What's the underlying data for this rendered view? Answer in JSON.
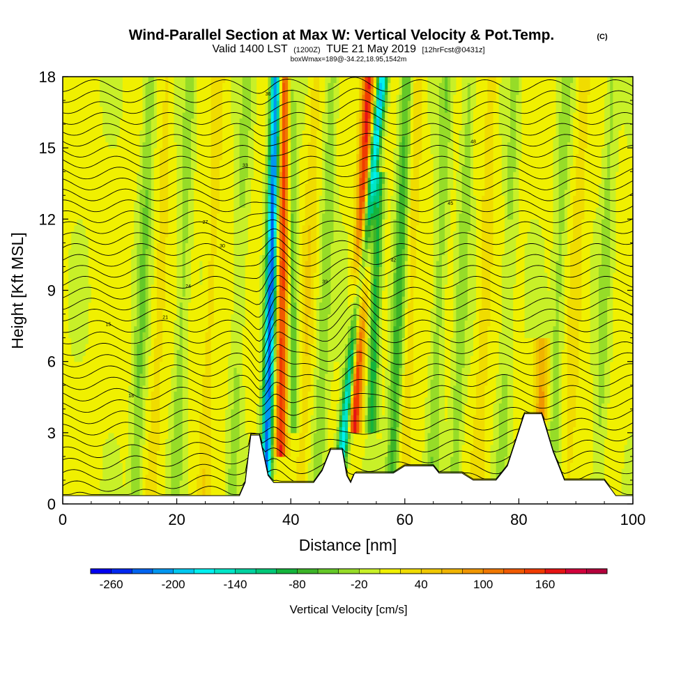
{
  "chart_data": {
    "type": "heatmap",
    "title": "Wind-Parallel Section at Max W: Vertical Velocity & Pot.Temp.",
    "title_mark": "(C)",
    "subtitle_valid": "Valid 1400 LST",
    "subtitle_z": "(1200Z)",
    "subtitle_date": "TUE 21 May 2019",
    "subtitle_fcst": "[12hrFcst@0431z]",
    "subtitle_box": "boxWmax=189@-34.22,18.95,1542m",
    "xlabel": "Distance [nm]",
    "ylabel": "Height [Kft MSL]",
    "xlim": [
      0,
      100
    ],
    "ylim": [
      0,
      18
    ],
    "xticks": [
      0,
      20,
      40,
      60,
      80,
      100
    ],
    "yticks": [
      0,
      3,
      6,
      9,
      12,
      15,
      18
    ],
    "colorbar": {
      "label": "Vertical Velocity [cm/s]",
      "ticks": [
        "-260",
        "-200",
        "-140",
        "-80",
        "-20",
        "40",
        "100",
        "160"
      ],
      "levels": [
        -280,
        -260,
        -240,
        -220,
        -200,
        -180,
        -160,
        -140,
        -120,
        -100,
        -80,
        -60,
        -40,
        -20,
        0,
        20,
        40,
        60,
        80,
        100,
        120,
        140,
        160,
        180,
        200
      ],
      "colors": [
        "#0000f0",
        "#0028f0",
        "#0064f0",
        "#0096f0",
        "#00c8f0",
        "#00f0f0",
        "#00e6c8",
        "#00d2a0",
        "#00c878",
        "#14b43c",
        "#3cb428",
        "#64c828",
        "#96dc28",
        "#c8f028",
        "#f0f000",
        "#f0dc00",
        "#f0c800",
        "#f0b400",
        "#f09600",
        "#f07800",
        "#f05a00",
        "#f03c00",
        "#e61414",
        "#d2003c",
        "#b4003c"
      ]
    },
    "updrafts": [
      {
        "x": 37.5,
        "z": 5.0,
        "w": 155
      },
      {
        "x": 39.0,
        "z": 12.0,
        "w": 150
      },
      {
        "x": 52.5,
        "z": 15.5,
        "w": 185
      },
      {
        "x": 84.0,
        "z": 5.5,
        "w": 90
      }
    ],
    "downdrafts": [
      {
        "x": 35.5,
        "z": 4.0,
        "w": -250
      },
      {
        "x": 37.0,
        "z": 15.0,
        "w": -180
      },
      {
        "x": 49.0,
        "z": 2.5,
        "w": -200
      },
      {
        "x": 56.0,
        "z": 15.5,
        "w": -160
      }
    ],
    "terrain": [
      [
        0,
        0.35
      ],
      [
        20,
        0.35
      ],
      [
        31,
        0.35
      ],
      [
        32,
        0.9
      ],
      [
        33,
        2.9
      ],
      [
        34.5,
        2.9
      ],
      [
        36,
        1.2
      ],
      [
        37,
        0.9
      ],
      [
        38,
        0.9
      ],
      [
        44,
        0.9
      ],
      [
        45.5,
        1.4
      ],
      [
        47,
        2.3
      ],
      [
        49,
        2.3
      ],
      [
        49.8,
        1.2
      ],
      [
        50.5,
        0.9
      ],
      [
        51.2,
        1.3
      ],
      [
        58,
        1.3
      ],
      [
        60,
        1.6
      ],
      [
        65,
        1.6
      ],
      [
        66,
        1.3
      ],
      [
        70,
        1.3
      ],
      [
        72,
        1.0
      ],
      [
        76,
        1.0
      ],
      [
        78,
        1.6
      ],
      [
        81,
        3.8
      ],
      [
        84,
        3.8
      ],
      [
        86,
        2.2
      ],
      [
        88,
        1.0
      ],
      [
        95,
        1.0
      ],
      [
        97,
        0.35
      ],
      [
        100,
        0.35
      ]
    ],
    "isentrope_labels": [
      "15",
      "18",
      "21",
      "24",
      "27",
      "30",
      "33",
      "36",
      "39",
      "42",
      "45",
      "48"
    ]
  }
}
